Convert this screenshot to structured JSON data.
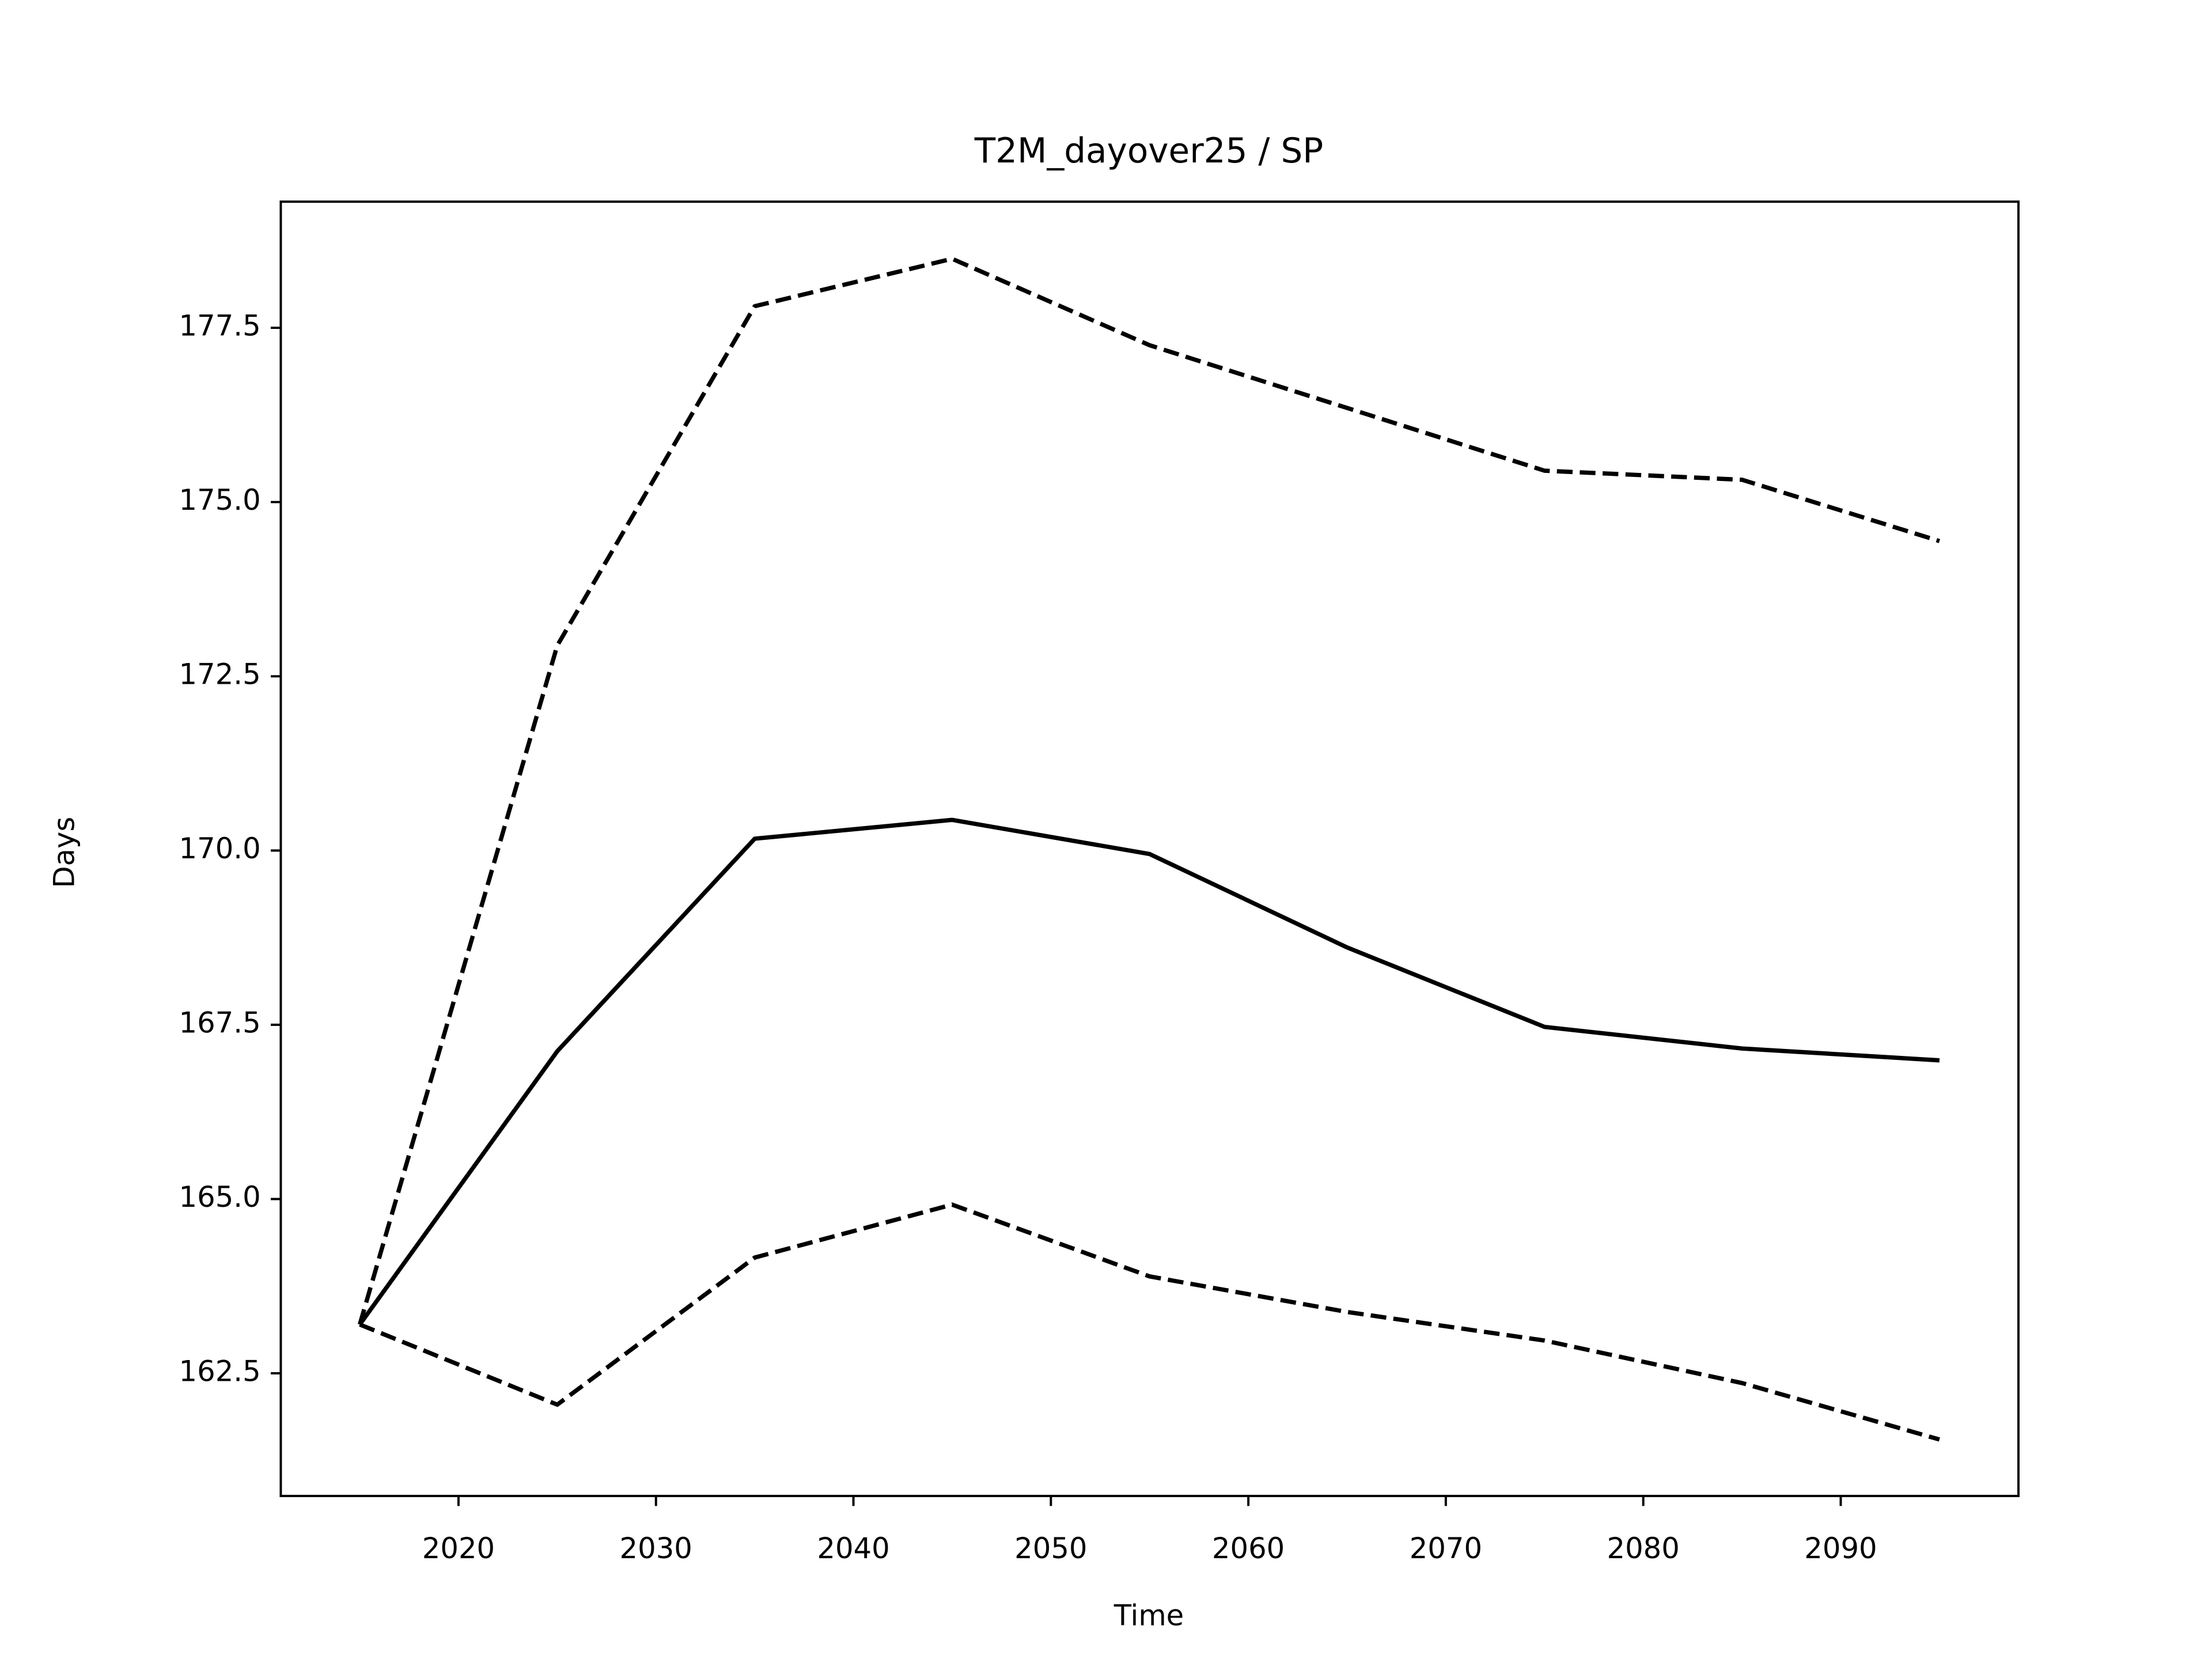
{
  "chart_data": {
    "type": "line",
    "title": "T2M_dayover25 / SP",
    "x_label": "Time",
    "y_label": "Days",
    "x": [
      2015,
      2025,
      2035,
      2045,
      2055,
      2065,
      2075,
      2085,
      2095
    ],
    "series": [
      {
        "color": "#000000",
        "dashed": false,
        "values": [
          163.2,
          167.12,
          170.17,
          170.44,
          169.95,
          168.61,
          167.47,
          167.16,
          166.99
        ]
      },
      {
        "color": "#000000",
        "dashed": true,
        "values": [
          163.2,
          172.94,
          177.81,
          178.49,
          177.25,
          176.35,
          175.45,
          175.32,
          174.44
        ]
      },
      {
        "color": "#000000",
        "dashed": true,
        "values": [
          163.2,
          162.05,
          164.16,
          164.92,
          163.89,
          163.38,
          162.97,
          162.36,
          161.55
        ]
      }
    ],
    "xlim": [
      2011,
      2099
    ],
    "xticks": [
      2020,
      2030,
      2040,
      2050,
      2060,
      2070,
      2080,
      2090
    ],
    "ylim": [
      160.74,
      179.31
    ],
    "yticks": [
      162.5,
      {
        "value": 165,
        "label": "165.0"
      },
      167.5,
      {
        "value": 170,
        "label": "170.0"
      },
      172.5,
      {
        "value": 175,
        "label": "175.0"
      },
      177.5
    ],
    "grid": false
  }
}
